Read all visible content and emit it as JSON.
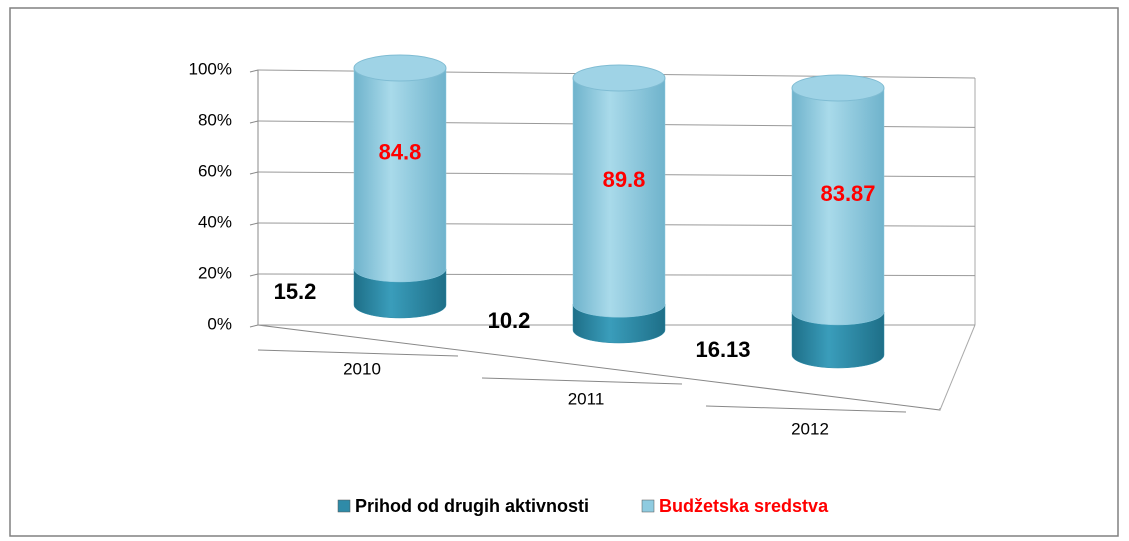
{
  "chart_data": {
    "type": "bar",
    "stacked": true,
    "categories": [
      "2010",
      "2011",
      "2012"
    ],
    "series": [
      {
        "name": "Prihod od drugih aktivnosti",
        "color": "#2f8ba8",
        "label_color": "#000000",
        "values": [
          15.2,
          10.2,
          16.13
        ]
      },
      {
        "name": "Budžetska sredstva",
        "color": "#8fcbe0",
        "label_color": "#ff0000",
        "values": [
          84.8,
          89.8,
          83.87
        ]
      }
    ],
    "ylim": [
      0,
      100
    ],
    "yticks": [
      {
        "value": 0,
        "label": "0%"
      },
      {
        "value": 20,
        "label": "20%"
      },
      {
        "value": 40,
        "label": "40%"
      },
      {
        "value": 60,
        "label": "60%"
      },
      {
        "value": 80,
        "label": "80%"
      },
      {
        "value": 100,
        "label": "100%"
      }
    ],
    "grid": true,
    "legend": "bottom"
  }
}
